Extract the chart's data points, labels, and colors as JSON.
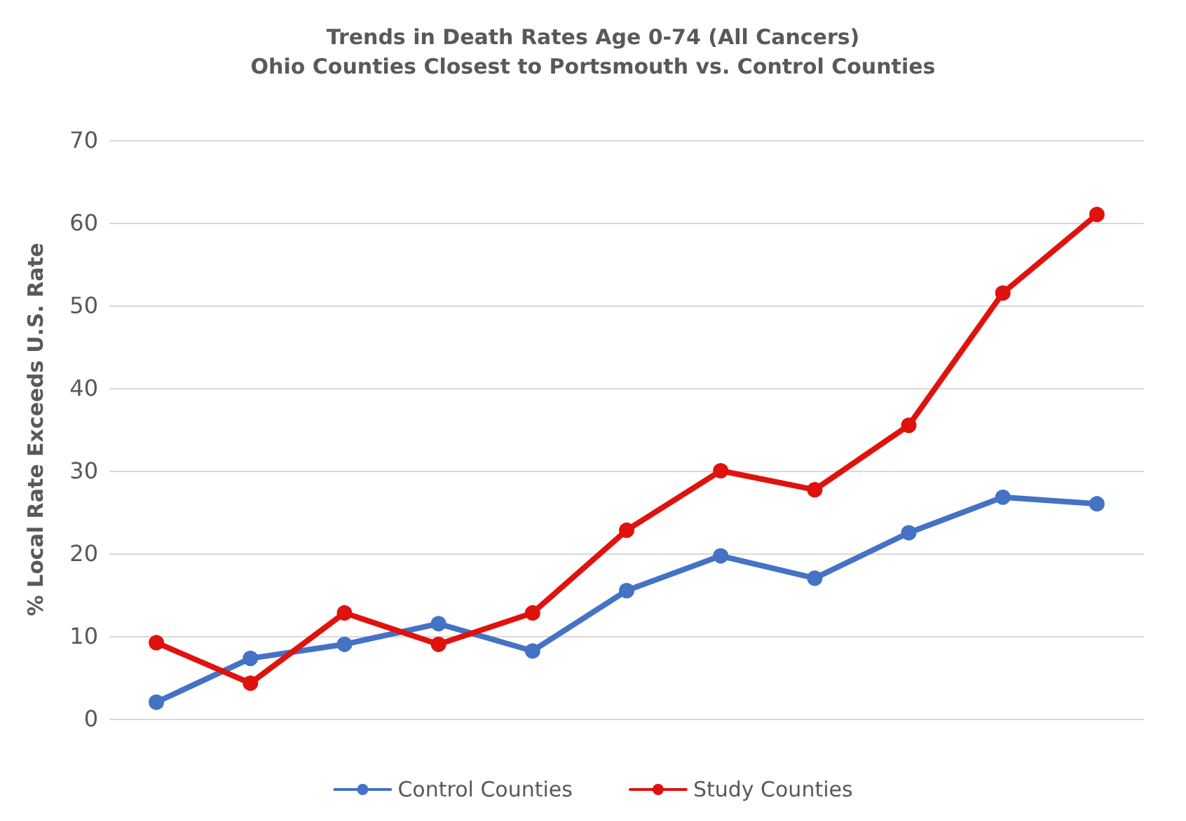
{
  "chart_data": {
    "type": "line",
    "title": "Trends in Death Rates Age 0-74 (All Cancers)",
    "subtitle": "Ohio Counties Closest to Portsmouth vs. Control Counties",
    "ylabel": "% Local Rate Exceeds U.S. Rate",
    "categories": [
      null,
      null,
      null,
      null,
      null,
      null,
      null,
      null,
      null,
      null,
      null
    ],
    "series": [
      {
        "name": "Control Counties",
        "color": "#4472c4",
        "values": [
          2,
          7.3,
          9,
          11.5,
          8.2,
          15.5,
          19.7,
          17,
          22.5,
          26.8,
          26
        ]
      },
      {
        "name": "Study Counties",
        "color": "#e0120e",
        "values": [
          9.2,
          4.3,
          12.8,
          9,
          12.8,
          22.8,
          30,
          27.7,
          35.5,
          51.5,
          61
        ]
      }
    ],
    "ylim": [
      0,
      70
    ],
    "yticks": [
      0,
      10,
      20,
      30,
      40,
      50,
      60,
      70
    ],
    "grid": "y",
    "legend": "bottom",
    "marker": "circle",
    "line_style": "solid",
    "tick_labels": "y"
  }
}
